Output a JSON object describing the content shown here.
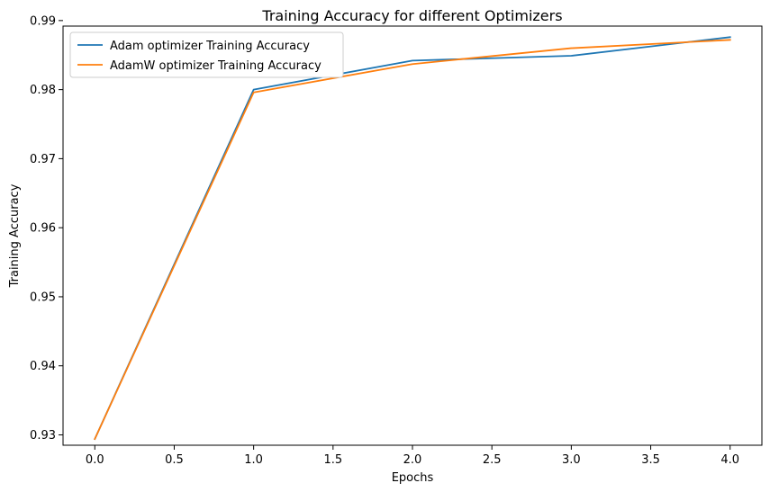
{
  "chart_data": {
    "type": "line",
    "title": "Training Accuracy for different Optimizers",
    "xlabel": "Epochs",
    "ylabel": "Training Accuracy",
    "x": [
      0,
      1,
      2,
      3,
      4
    ],
    "xlim": [
      -0.2,
      4.2
    ],
    "ylim": [
      0.9285,
      0.9892
    ],
    "xticks": [
      0.0,
      0.5,
      1.0,
      1.5,
      2.0,
      2.5,
      3.0,
      3.5,
      4.0
    ],
    "xtick_labels": [
      "0.0",
      "0.5",
      "1.0",
      "1.5",
      "2.0",
      "2.5",
      "3.0",
      "3.5",
      "4.0"
    ],
    "yticks": [
      0.93,
      0.94,
      0.95,
      0.96,
      0.97,
      0.98,
      0.99
    ],
    "ytick_labels": [
      "0.93",
      "0.94",
      "0.95",
      "0.96",
      "0.97",
      "0.98",
      "0.99"
    ],
    "grid": false,
    "legend_position": "top-left",
    "series": [
      {
        "name": "Adam optimizer Training Accuracy",
        "color": "#1f77b4",
        "values": [
          0.9294,
          0.98,
          0.9842,
          0.9849,
          0.9876
        ]
      },
      {
        "name": "AdamW optimizer Training Accuracy",
        "color": "#ff7f0e",
        "values": [
          0.9294,
          0.9796,
          0.9837,
          0.986,
          0.9872
        ]
      }
    ]
  }
}
